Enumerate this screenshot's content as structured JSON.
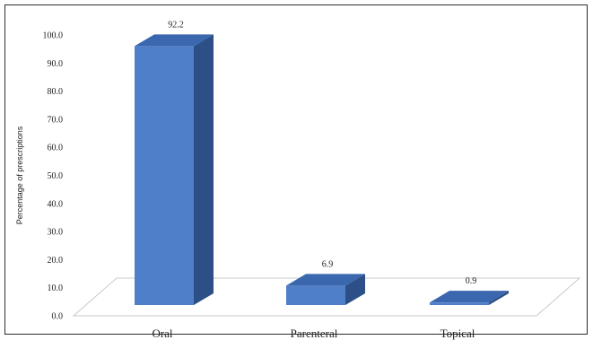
{
  "chart_data": {
    "type": "bar",
    "categories": [
      "Oral",
      "Parenteral",
      "Topical"
    ],
    "values": [
      92.2,
      6.9,
      0.9
    ],
    "data_labels": [
      "92.2",
      "6.9",
      "0.9"
    ],
    "title": "",
    "xlabel": "",
    "ylabel": "Percentage of prescriptions",
    "ylim": [
      0,
      100
    ],
    "yticks": [
      "0.0",
      "10.0",
      "20.0",
      "30.0",
      "40.0",
      "50.0",
      "60.0",
      "70.0",
      "80.0",
      "90.0",
      "100.0"
    ],
    "grid": false,
    "legend": "none",
    "colors": {
      "front": "#4f7fc8",
      "side": "#2b4f86",
      "top": "#3a67ad"
    }
  }
}
